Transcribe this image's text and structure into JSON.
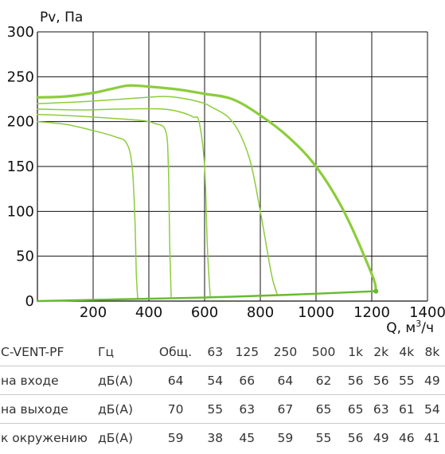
{
  "chart_data": {
    "type": "line",
    "ylabel": "Pv, Па",
    "xlabel": "Q, м³/ч",
    "xlabel_main": "Q, м",
    "xlabel_sup": "3",
    "xlabel_tail": "/ч",
    "xlim": [
      0,
      1400
    ],
    "ylim": [
      0,
      300
    ],
    "xticks": [
      200,
      400,
      600,
      800,
      1000,
      1200,
      1400
    ],
    "yticks": [
      0,
      50,
      100,
      150,
      200,
      250,
      300
    ],
    "grid": true,
    "colors": {
      "curve": "#8ccd3c",
      "system": "#66bb2e",
      "grid": "#111111"
    },
    "series": [
      {
        "x": [
          0,
          100,
          200,
          260,
          320,
          360,
          400,
          500,
          600,
          700,
          800,
          900,
          1000,
          1100,
          1200,
          1215
        ],
        "y": [
          227,
          228,
          232,
          236,
          240,
          240,
          239,
          236,
          231,
          225,
          207,
          183,
          150,
          100,
          30,
          12
        ]
      },
      {
        "x": [
          0,
          150,
          300,
          450,
          520,
          580,
          620,
          700,
          760,
          800,
          840,
          860
        ],
        "y": [
          220,
          222,
          225,
          228,
          226,
          222,
          217,
          200,
          160,
          100,
          30,
          8
        ]
      },
      {
        "x": [
          0,
          150,
          300,
          450,
          520,
          560,
          580,
          600,
          610,
          620
        ],
        "y": [
          214,
          213,
          214,
          214,
          210,
          205,
          200,
          150,
          60,
          6
        ]
      },
      {
        "x": [
          0,
          150,
          300,
          380,
          420,
          460,
          470,
          475,
          480
        ],
        "y": [
          208,
          206,
          203,
          201,
          198,
          190,
          150,
          60,
          5
        ]
      },
      {
        "x": [
          0,
          100,
          200,
          280,
          320,
          340,
          350,
          355,
          360
        ],
        "y": [
          200,
          197,
          190,
          183,
          176,
          150,
          90,
          30,
          3
        ]
      },
      {
        "x": [
          0,
          300,
          600,
          900,
          1215
        ],
        "y": [
          0,
          2,
          4,
          7,
          11
        ]
      }
    ]
  },
  "noise_table": {
    "headers": [
      "C-VENT-PF",
      "Гц",
      "Общ.",
      "63",
      "125",
      "250",
      "500",
      "1k",
      "2k",
      "4k",
      "8k"
    ],
    "rows": [
      [
        "на входе",
        "дБ(А)",
        "64",
        "54",
        "66",
        "64",
        "62",
        "56",
        "56",
        "55",
        "49"
      ],
      [
        "на выходе",
        "дБ(А)",
        "70",
        "55",
        "63",
        "67",
        "65",
        "65",
        "63",
        "61",
        "54"
      ],
      [
        "к окружению",
        "дБ(А)",
        "59",
        "38",
        "45",
        "59",
        "55",
        "56",
        "49",
        "46",
        "41"
      ]
    ]
  }
}
